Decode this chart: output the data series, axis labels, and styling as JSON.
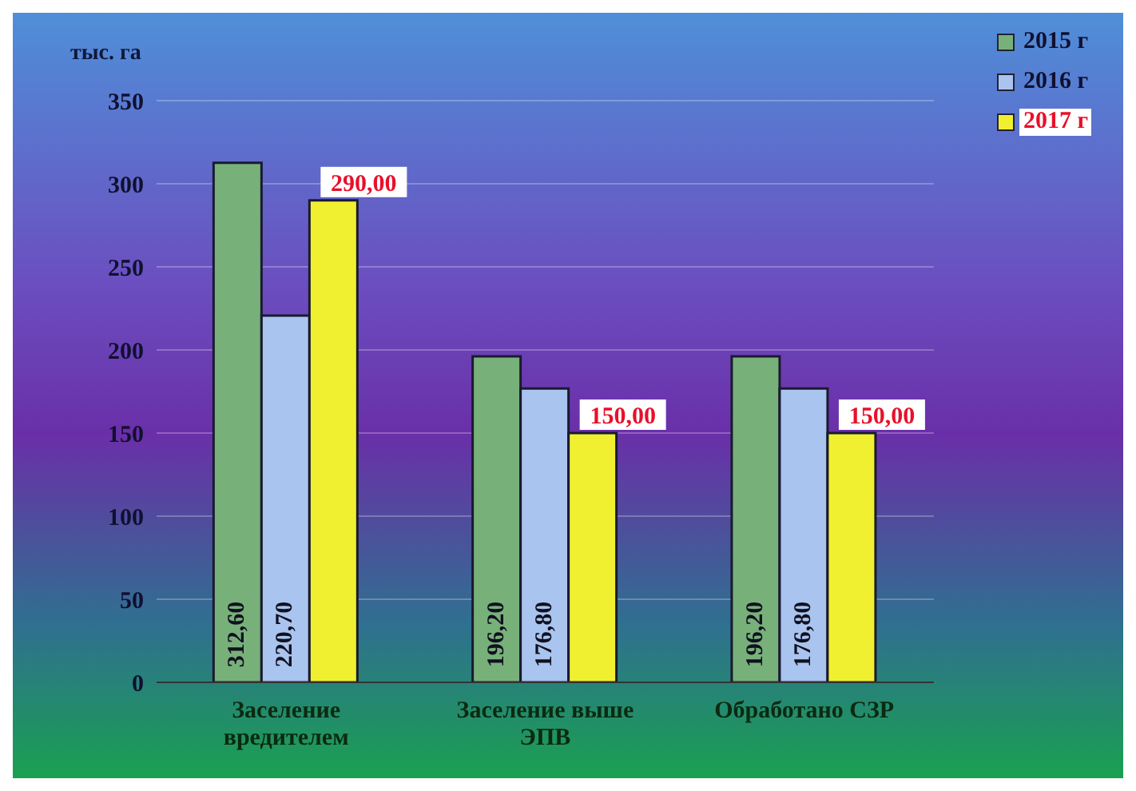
{
  "chart_data": {
    "type": "bar",
    "ylabel": "тыс. га",
    "categories": [
      "Заселение вредителем",
      "Заселение выше ЭПВ",
      "Обработано СЗР"
    ],
    "series": [
      {
        "name": "2015 г",
        "color": "#78b07a",
        "values": [
          312.6,
          196.2,
          196.2
        ],
        "value_labels": [
          "312,60",
          "196,20",
          "196,20"
        ]
      },
      {
        "name": "2016 г",
        "color": "#a9c4ee",
        "values": [
          220.7,
          176.8,
          176.8
        ],
        "value_labels": [
          "220,70",
          "176,80",
          "176,80"
        ]
      },
      {
        "name": "2017 г",
        "color": "#f0f030",
        "values": [
          290,
          150,
          150
        ],
        "value_labels": [
          "290,00",
          "150,00",
          "150,00"
        ]
      }
    ],
    "ylim": [
      0,
      350
    ],
    "yticks": [
      0,
      50,
      100,
      150,
      200,
      250,
      300,
      350
    ],
    "grid": "y",
    "legend": "top right"
  }
}
